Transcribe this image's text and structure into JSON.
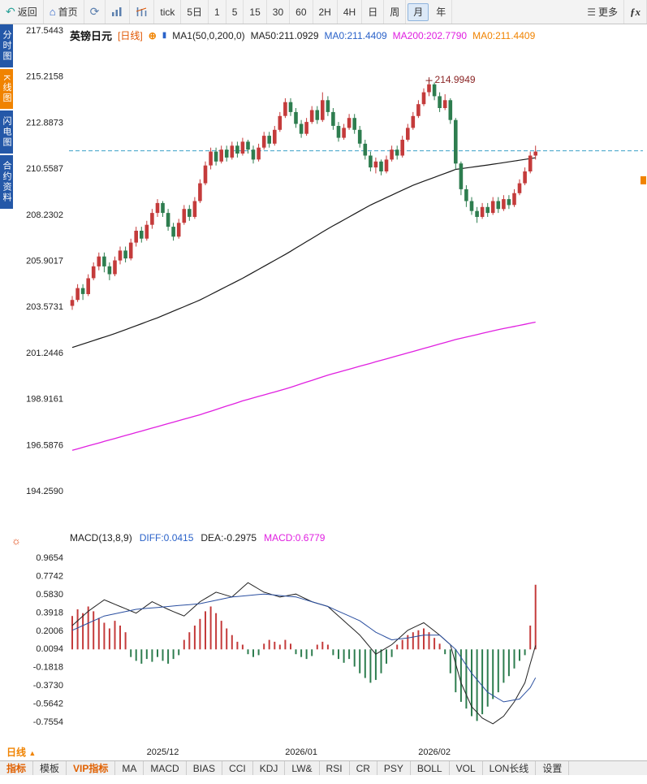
{
  "icons": {
    "back": "↶",
    "home": "⌂",
    "refresh": "⟳",
    "menu": "☰",
    "expand": "⊕",
    "sun": "☼",
    "arrow_up": "▲",
    "ma_tick": "▮"
  },
  "toolbar": {
    "back_label": "返回",
    "home_label": "首页",
    "timeframes": [
      "tick",
      "5日",
      "1",
      "5",
      "15",
      "30",
      "60",
      "2H",
      "4H",
      "日",
      "周",
      "月",
      "年"
    ],
    "active_timeframe": "月",
    "more_label": "更多",
    "fx_label": "ƒx"
  },
  "sidebar": {
    "items": [
      {
        "label": "分时图",
        "active": false
      },
      {
        "label": "K线图",
        "active": true
      },
      {
        "label": "闪电图",
        "active": false
      },
      {
        "label": "合约资料",
        "active": false
      }
    ]
  },
  "price_header": {
    "symbol": "英镑日元",
    "period": "[日线]",
    "ma_settings": "MA1(50,0,200,0)",
    "ma50": "MA50:211.0929",
    "ma0_blue": "MA0:211.4409",
    "ma200": "MA200:202.7790",
    "ma0_orange": "MA0:211.4409"
  },
  "macd_header": {
    "title": "MACD(13,8,9)",
    "diff": "DIFF:0.0415",
    "dea": "DEA:-0.2975",
    "macd": "MACD:0.6779"
  },
  "bottom": {
    "period_label": "日线",
    "tabs": [
      {
        "label": "指标",
        "accent": true
      },
      {
        "label": "模板",
        "accent": false
      },
      {
        "label": "VIP指标",
        "accent": true
      },
      {
        "label": "MA",
        "accent": false
      },
      {
        "label": "MACD",
        "accent": false
      },
      {
        "label": "BIAS",
        "accent": false
      },
      {
        "label": "CCI",
        "accent": false
      },
      {
        "label": "KDJ",
        "accent": false
      },
      {
        "label": "LW&",
        "accent": false
      },
      {
        "label": "RSI",
        "accent": false
      },
      {
        "label": "CR",
        "accent": false
      },
      {
        "label": "PSY",
        "accent": false
      },
      {
        "label": "BOLL",
        "accent": false
      },
      {
        "label": "VOL",
        "accent": false
      },
      {
        "label": "LON长线",
        "accent": false
      },
      {
        "label": "设置",
        "accent": false
      }
    ]
  },
  "chart_data": {
    "type": "candlestick+macd",
    "title": "英镑日元 日线",
    "price_axis_labels": [
      "217.5443",
      "215.2158",
      "212.8873",
      "210.5587",
      "208.2302",
      "205.9017",
      "203.5731",
      "201.2446",
      "198.9161",
      "196.5876",
      "194.2590"
    ],
    "price_range": [
      194.259,
      217.5443
    ],
    "macd_axis_labels": [
      "0.9654",
      "0.7742",
      "0.5830",
      "0.3918",
      "0.2006",
      "0.0094",
      "-0.1818",
      "-0.3730",
      "-0.5642",
      "-0.7554"
    ],
    "macd_range": [
      -0.7554,
      0.9654
    ],
    "dashed_line": 211.4409,
    "right_marker_price": 209.95,
    "peak_annotation": {
      "bar": 67,
      "price": 214.9949,
      "label": "214.9949"
    },
    "x_labels": [
      {
        "label": "2025/12",
        "bar": 17
      },
      {
        "label": "2026/01",
        "bar": 43
      },
      {
        "label": "2026/02",
        "bar": 68
      }
    ],
    "candles": [
      [
        203.6,
        204.1,
        203.4,
        203.9
      ],
      [
        203.9,
        204.7,
        203.8,
        204.5
      ],
      [
        204.5,
        204.7,
        203.9,
        204.2
      ],
      [
        204.2,
        205.2,
        204.1,
        205.0
      ],
      [
        205.0,
        205.8,
        204.9,
        205.6
      ],
      [
        205.6,
        206.3,
        205.4,
        206.1
      ],
      [
        206.1,
        206.3,
        205.3,
        205.6
      ],
      [
        205.6,
        205.8,
        204.9,
        205.2
      ],
      [
        205.2,
        206.1,
        205.1,
        205.9
      ],
      [
        205.9,
        206.6,
        205.7,
        206.4
      ],
      [
        206.4,
        206.6,
        205.8,
        206.0
      ],
      [
        206.0,
        207.0,
        205.9,
        206.8
      ],
      [
        206.8,
        207.6,
        206.6,
        207.4
      ],
      [
        207.4,
        207.6,
        206.8,
        207.0
      ],
      [
        207.0,
        207.9,
        206.9,
        207.7
      ],
      [
        207.7,
        208.5,
        207.5,
        208.3
      ],
      [
        208.3,
        209.0,
        208.1,
        208.8
      ],
      [
        208.8,
        208.9,
        208.1,
        208.3
      ],
      [
        208.3,
        208.5,
        207.4,
        207.6
      ],
      [
        207.6,
        207.8,
        206.9,
        207.1
      ],
      [
        207.1,
        208.0,
        207.0,
        207.8
      ],
      [
        207.8,
        208.7,
        207.7,
        208.5
      ],
      [
        208.5,
        208.7,
        207.9,
        208.1
      ],
      [
        208.1,
        209.1,
        208.0,
        208.9
      ],
      [
        208.9,
        210.0,
        208.8,
        209.8
      ],
      [
        209.8,
        210.9,
        209.7,
        210.7
      ],
      [
        210.7,
        211.6,
        210.5,
        211.4
      ],
      [
        211.4,
        211.6,
        210.7,
        210.9
      ],
      [
        210.9,
        211.7,
        210.8,
        211.5
      ],
      [
        211.5,
        211.7,
        210.9,
        211.1
      ],
      [
        211.1,
        211.9,
        211.0,
        211.7
      ],
      [
        211.7,
        211.9,
        211.1,
        211.3
      ],
      [
        211.3,
        212.1,
        211.2,
        211.9
      ],
      [
        211.9,
        212.0,
        211.3,
        211.5
      ],
      [
        211.5,
        211.7,
        210.8,
        211.0
      ],
      [
        211.0,
        211.8,
        210.9,
        211.6
      ],
      [
        211.6,
        212.4,
        211.5,
        212.2
      ],
      [
        212.2,
        212.4,
        211.6,
        211.8
      ],
      [
        211.8,
        212.7,
        211.7,
        212.5
      ],
      [
        212.5,
        213.4,
        212.4,
        213.2
      ],
      [
        213.2,
        214.1,
        213.1,
        213.9
      ],
      [
        213.9,
        214.1,
        213.2,
        213.4
      ],
      [
        213.4,
        213.6,
        212.6,
        212.8
      ],
      [
        212.8,
        213.0,
        212.1,
        212.3
      ],
      [
        212.3,
        213.1,
        212.2,
        212.9
      ],
      [
        212.9,
        213.7,
        212.8,
        213.5
      ],
      [
        213.5,
        213.7,
        212.8,
        213.0
      ],
      [
        213.0,
        214.4,
        212.9,
        214.0
      ],
      [
        214.0,
        214.2,
        213.2,
        213.4
      ],
      [
        213.4,
        213.6,
        212.5,
        212.7
      ],
      [
        212.7,
        212.9,
        211.9,
        212.1
      ],
      [
        212.1,
        212.8,
        212.0,
        212.6
      ],
      [
        212.6,
        213.3,
        212.5,
        213.1
      ],
      [
        213.1,
        213.3,
        212.3,
        212.5
      ],
      [
        212.5,
        212.7,
        211.6,
        211.8
      ],
      [
        211.8,
        212.0,
        211.0,
        211.2
      ],
      [
        211.2,
        211.4,
        210.4,
        210.6
      ],
      [
        210.6,
        211.1,
        210.3,
        210.9
      ],
      [
        210.9,
        211.0,
        210.2,
        210.4
      ],
      [
        210.4,
        211.2,
        210.3,
        211.0
      ],
      [
        211.0,
        211.7,
        210.9,
        211.5
      ],
      [
        211.5,
        211.7,
        211.0,
        211.2
      ],
      [
        211.2,
        212.2,
        211.1,
        212.0
      ],
      [
        212.0,
        212.8,
        211.9,
        212.6
      ],
      [
        212.6,
        213.4,
        212.5,
        213.2
      ],
      [
        213.2,
        214.0,
        213.1,
        213.8
      ],
      [
        213.8,
        214.6,
        213.7,
        214.4
      ],
      [
        214.4,
        214.9949,
        214.2,
        214.8
      ],
      [
        214.8,
        214.9,
        214.0,
        214.2
      ],
      [
        214.2,
        214.4,
        213.4,
        213.6
      ],
      [
        213.6,
        214.3,
        213.5,
        214.0
      ],
      [
        214.0,
        214.1,
        212.8,
        213.0
      ],
      [
        213.0,
        213.1,
        210.5,
        210.8
      ],
      [
        210.8,
        210.9,
        209.2,
        209.5
      ],
      [
        209.5,
        209.7,
        208.6,
        208.9
      ],
      [
        208.9,
        209.1,
        208.2,
        208.4
      ],
      [
        208.4,
        208.6,
        207.8,
        208.1
      ],
      [
        208.1,
        208.8,
        208.0,
        208.6
      ],
      [
        208.6,
        208.8,
        208.1,
        208.3
      ],
      [
        208.3,
        209.1,
        208.2,
        208.9
      ],
      [
        208.9,
        209.1,
        208.3,
        208.5
      ],
      [
        208.5,
        209.2,
        208.4,
        209.0
      ],
      [
        209.0,
        209.2,
        208.5,
        208.7
      ],
      [
        208.7,
        209.5,
        208.6,
        209.3
      ],
      [
        209.3,
        210.0,
        209.2,
        209.8
      ],
      [
        209.8,
        210.6,
        209.7,
        210.4
      ],
      [
        210.4,
        211.4,
        210.3,
        211.2
      ],
      [
        211.2,
        211.7,
        211.0,
        211.4
      ]
    ],
    "ma50_points": [
      [
        0,
        201.5
      ],
      [
        8,
        202.2
      ],
      [
        16,
        203.0
      ],
      [
        24,
        203.9
      ],
      [
        32,
        205.0
      ],
      [
        40,
        206.2
      ],
      [
        48,
        207.5
      ],
      [
        56,
        208.7
      ],
      [
        64,
        209.7
      ],
      [
        72,
        210.5
      ],
      [
        80,
        210.8
      ],
      [
        87,
        211.09
      ]
    ],
    "ma200_points": [
      [
        0,
        196.3
      ],
      [
        8,
        196.9
      ],
      [
        16,
        197.5
      ],
      [
        24,
        198.1
      ],
      [
        32,
        198.8
      ],
      [
        40,
        199.4
      ],
      [
        48,
        200.1
      ],
      [
        56,
        200.7
      ],
      [
        64,
        201.3
      ],
      [
        72,
        201.9
      ],
      [
        80,
        202.4
      ],
      [
        87,
        202.78
      ]
    ],
    "diff_points": [
      [
        0,
        0.25
      ],
      [
        3,
        0.4
      ],
      [
        6,
        0.52
      ],
      [
        9,
        0.45
      ],
      [
        12,
        0.38
      ],
      [
        15,
        0.5
      ],
      [
        18,
        0.42
      ],
      [
        21,
        0.35
      ],
      [
        24,
        0.5
      ],
      [
        27,
        0.6
      ],
      [
        30,
        0.55
      ],
      [
        33,
        0.7
      ],
      [
        36,
        0.6
      ],
      [
        39,
        0.55
      ],
      [
        42,
        0.58
      ],
      [
        45,
        0.5
      ],
      [
        48,
        0.45
      ],
      [
        51,
        0.3
      ],
      [
        54,
        0.15
      ],
      [
        57,
        -0.05
      ],
      [
        60,
        0.05
      ],
      [
        63,
        0.2
      ],
      [
        66,
        0.28
      ],
      [
        69,
        0.15
      ],
      [
        71,
        0.05
      ],
      [
        73,
        -0.35
      ],
      [
        75,
        -0.6
      ],
      [
        77,
        -0.72
      ],
      [
        79,
        -0.78
      ],
      [
        81,
        -0.7
      ],
      [
        83,
        -0.55
      ],
      [
        85,
        -0.35
      ],
      [
        86,
        -0.15
      ],
      [
        87,
        0.0415
      ]
    ],
    "dea_points": [
      [
        0,
        0.2
      ],
      [
        6,
        0.35
      ],
      [
        12,
        0.42
      ],
      [
        18,
        0.45
      ],
      [
        24,
        0.48
      ],
      [
        30,
        0.55
      ],
      [
        36,
        0.58
      ],
      [
        42,
        0.55
      ],
      [
        48,
        0.45
      ],
      [
        54,
        0.3
      ],
      [
        57,
        0.18
      ],
      [
        60,
        0.1
      ],
      [
        63,
        0.12
      ],
      [
        66,
        0.15
      ],
      [
        69,
        0.15
      ],
      [
        72,
        0.0
      ],
      [
        75,
        -0.25
      ],
      [
        78,
        -0.45
      ],
      [
        81,
        -0.55
      ],
      [
        84,
        -0.52
      ],
      [
        86,
        -0.4
      ],
      [
        87,
        -0.2975
      ]
    ],
    "hist": [
      0.35,
      0.42,
      0.38,
      0.45,
      0.4,
      0.33,
      0.28,
      0.22,
      0.3,
      0.25,
      0.18,
      -0.08,
      -0.12,
      -0.15,
      -0.1,
      -0.13,
      -0.08,
      -0.12,
      -0.15,
      -0.1,
      -0.06,
      0.1,
      0.18,
      0.25,
      0.32,
      0.4,
      0.45,
      0.38,
      0.3,
      0.22,
      0.15,
      0.08,
      0.05,
      -0.05,
      -0.08,
      -0.06,
      0.06,
      0.1,
      0.08,
      0.05,
      0.1,
      0.06,
      -0.05,
      -0.08,
      -0.1,
      -0.07,
      0.05,
      0.08,
      0.05,
      -0.06,
      -0.1,
      -0.14,
      -0.1,
      -0.18,
      -0.25,
      -0.3,
      -0.35,
      -0.32,
      -0.25,
      -0.15,
      -0.08,
      0.05,
      0.1,
      0.15,
      0.18,
      0.2,
      0.22,
      0.18,
      0.12,
      0.06,
      -0.05,
      -0.25,
      -0.45,
      -0.55,
      -0.62,
      -0.7,
      -0.75,
      -0.68,
      -0.6,
      -0.52,
      -0.45,
      -0.35,
      -0.28,
      -0.2,
      -0.12,
      -0.06,
      0.25,
      0.6779
    ],
    "colors": {
      "up": "#c43b3b",
      "down": "#2e7d4f",
      "ma50": "#1a1a1a",
      "ma200": "#e020e0",
      "diff": "#222222",
      "dea": "#2a4fa0",
      "dashed": "#3aa0c8",
      "annotation": "#8b2525",
      "axis_text": "#222222",
      "marker": "#f08300"
    }
  }
}
